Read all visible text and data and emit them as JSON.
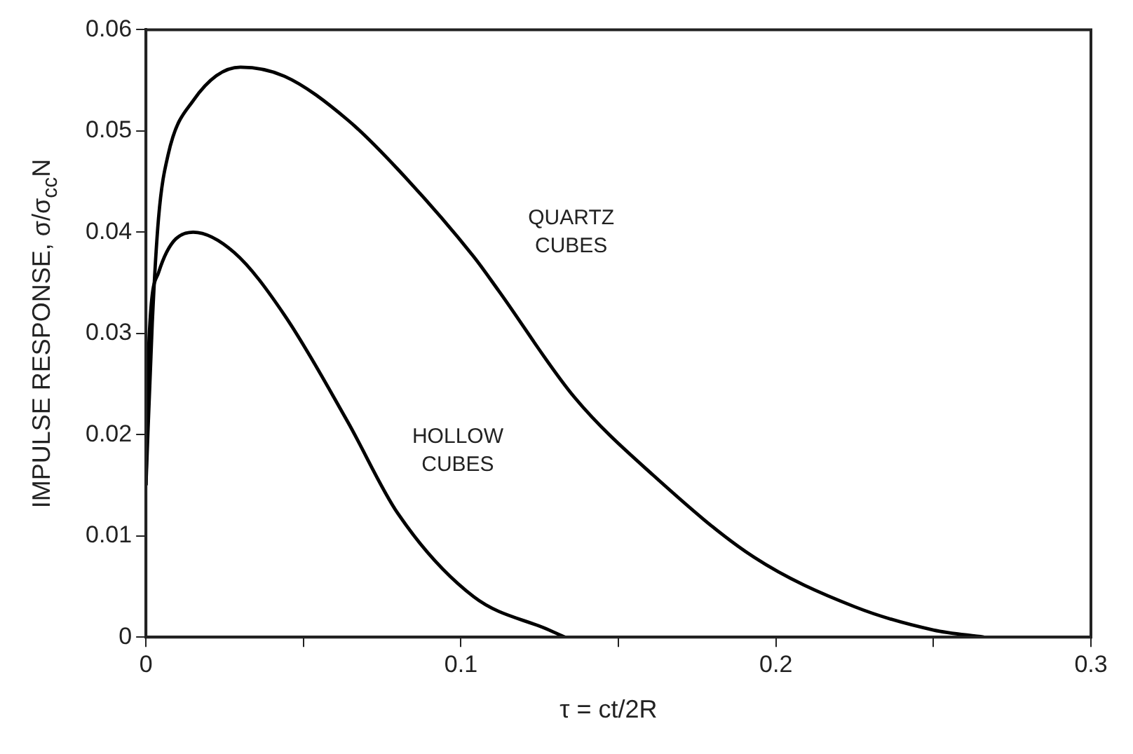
{
  "chart_data": {
    "type": "line",
    "xlabel": "τ = ct/2R",
    "ylabel": "IMPULSE RESPONSE, σ/σ$_{cc}$N",
    "xlim": [
      0,
      0.3
    ],
    "ylim": [
      0,
      0.06
    ],
    "xticks": [
      0,
      {
        "value": 0.05,
        "label": null
      },
      0.1,
      {
        "value": 0.15,
        "label": null
      },
      0.2,
      {
        "value": 0.25,
        "label": null
      },
      0.3
    ],
    "yticks": [
      0,
      0.01,
      0.02,
      0.03,
      0.04,
      0.05,
      0.06
    ],
    "grid": false,
    "legend": false,
    "marker": "none",
    "line_style": "solid",
    "series": [
      {
        "name": "QUARTZ CUBES",
        "color": "#000000",
        "x": [
          0,
          0.002,
          0.004,
          0.007,
          0.015,
          0.03,
          0.044,
          0.064,
          0.08,
          0.104,
          0.112,
          0.136,
          0.161,
          0.193,
          0.225,
          0.25,
          0.266
        ],
        "values": [
          0.015,
          0.031,
          0.0414,
          0.0476,
          0.053,
          0.0563,
          0.0554,
          0.0511,
          0.0462,
          0.0376,
          0.0342,
          0.0237,
          0.016,
          0.0079,
          0.003,
          0.0007,
          0
        ]
      },
      {
        "name": "HOLLOW CUBES",
        "color": "#000000",
        "x": [
          0,
          0.001,
          0.004,
          0.015,
          0.028,
          0.044,
          0.064,
          0.08,
          0.104,
          0.128,
          0.133
        ],
        "values": [
          0.015,
          0.0295,
          0.036,
          0.04,
          0.038,
          0.0318,
          0.0213,
          0.0122,
          0.004,
          0.0007,
          0
        ]
      }
    ]
  }
}
